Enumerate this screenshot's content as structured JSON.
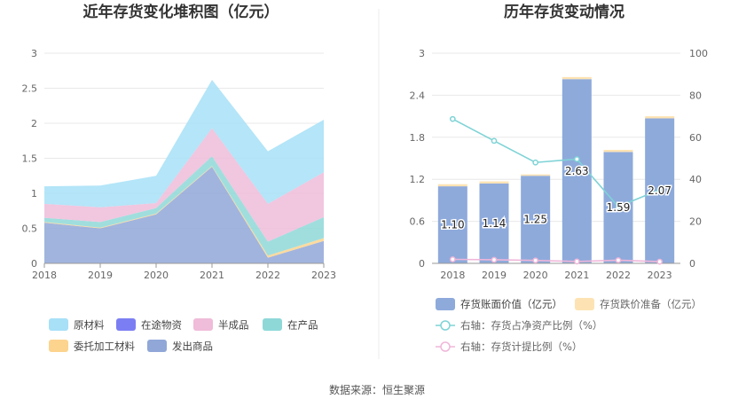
{
  "left_chart": {
    "title": "近年存货变化堆积图（亿元）"
  },
  "right_chart": {
    "title": "历年存货变动情况"
  },
  "source": "数据来源：恒生聚源",
  "chart_data": [
    {
      "type": "area",
      "stacked": true,
      "title": "近年存货变化堆积图（亿元）",
      "categories": [
        "2018",
        "2019",
        "2020",
        "2021",
        "2022",
        "2023"
      ],
      "ylim": [
        0,
        3
      ],
      "yticks": [
        "0",
        "0.5",
        "1",
        "1.5",
        "2",
        "2.5",
        "3"
      ],
      "grid": true,
      "series": [
        {
          "name": "发出商品",
          "color": "#90a7d8",
          "values": [
            0.58,
            0.5,
            0.7,
            1.38,
            0.08,
            0.32
          ]
        },
        {
          "name": "委托加工材料",
          "color": "#fcd48e",
          "values": [
            0.01,
            0.01,
            0.01,
            0.01,
            0.03,
            0.04
          ]
        },
        {
          "name": "在产品",
          "color": "#8fd8d8",
          "values": [
            0.06,
            0.08,
            0.08,
            0.14,
            0.2,
            0.3
          ]
        },
        {
          "name": "在途物资",
          "color": "#7b7ef2",
          "values": [
            0,
            0,
            0,
            0,
            0,
            0
          ]
        },
        {
          "name": "半成品",
          "color": "#efbcd9",
          "values": [
            0.2,
            0.21,
            0.07,
            0.4,
            0.54,
            0.64
          ]
        },
        {
          "name": "原材料",
          "color": "#a7e0f7",
          "values": [
            0.25,
            0.31,
            0.39,
            0.69,
            0.75,
            0.75
          ]
        }
      ],
      "legend": [
        {
          "name": "原材料",
          "color": "#a7e0f7"
        },
        {
          "name": "在途物资",
          "color": "#7b7ef2"
        },
        {
          "name": "半成品",
          "color": "#efbcd9"
        },
        {
          "name": "在产品",
          "color": "#8fd8d8"
        },
        {
          "name": "委托加工材料",
          "color": "#fcd48e"
        },
        {
          "name": "发出商品",
          "color": "#90a7d8"
        }
      ]
    },
    {
      "type": "bar",
      "title": "历年存货变动情况",
      "categories": [
        "2018",
        "2019",
        "2020",
        "2021",
        "2022",
        "2023"
      ],
      "ylim": [
        0,
        3
      ],
      "yticks": [
        "0",
        "0.6",
        "1.2",
        "1.8",
        "2.4",
        "3"
      ],
      "y2lim": [
        0,
        100
      ],
      "y2ticks": [
        "0",
        "20",
        "40",
        "60",
        "80",
        "100"
      ],
      "series": [
        {
          "name": "存货账面价值（亿元）",
          "color": "#8eaadb",
          "values": [
            1.1,
            1.14,
            1.25,
            2.63,
            1.59,
            2.07
          ],
          "labels": [
            "1.10",
            "1.14",
            "1.25",
            "2.63",
            "1.59",
            "2.07"
          ]
        },
        {
          "name": "存货跌价准备（亿元）",
          "color": "#fde3b3",
          "values": [
            0.03,
            0.03,
            0.02,
            0.03,
            0.03,
            0.03
          ]
        }
      ],
      "lines": [
        {
          "name": "右轴：存货占净资产比例（%）",
          "color": "#7fd3d6",
          "axis": "right",
          "values": [
            68.7,
            58.3,
            48.0,
            49.6,
            27.0,
            35.0
          ]
        },
        {
          "name": "右轴：存货计提比例（%）",
          "color": "#efb6d9",
          "axis": "right",
          "values": [
            1.9,
            1.7,
            1.4,
            0.9,
            1.5,
            0.8
          ]
        }
      ]
    }
  ]
}
